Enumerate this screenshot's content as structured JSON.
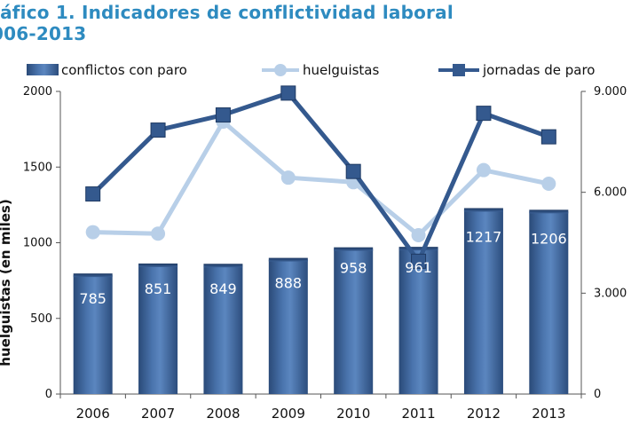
{
  "title_line1": "ráfico 1. Indicadores de conflictividad laboral",
  "title_line2": "006-2013",
  "chart_data": {
    "type": "bar",
    "categories": [
      "2006",
      "2007",
      "2008",
      "2009",
      "2010",
      "2011",
      "2012",
      "2013"
    ],
    "ylabel": "huelguistas (en miles)",
    "ylim": [
      0,
      2000
    ],
    "y2lim": [
      0,
      9000
    ],
    "y_ticks": [
      "0",
      "500",
      "1000",
      "1500",
      "2000"
    ],
    "y2_ticks": [
      "0",
      "3.000",
      "6.000",
      "9.000"
    ],
    "legend_position": "top",
    "series": [
      {
        "name": "conflictos con paro",
        "type": "bar",
        "axis": "left",
        "values": [
          785,
          851,
          849,
          888,
          958,
          961,
          1217,
          1206
        ],
        "labels": [
          "785",
          "851",
          "849",
          "888",
          "958",
          "961",
          "1217",
          "1206"
        ],
        "color": "#3a5f94"
      },
      {
        "name": "huelguistas",
        "type": "line",
        "axis": "left",
        "values": [
          1070,
          1060,
          1800,
          1430,
          1400,
          1050,
          1480,
          1390
        ],
        "color": "#b8cfe8"
      },
      {
        "name": "jornadas de paro",
        "type": "line",
        "axis": "right",
        "values": [
          5950,
          7850,
          8300,
          8950,
          6620,
          3950,
          8350,
          7650
        ],
        "color": "#34598e"
      }
    ],
    "grid": false
  }
}
